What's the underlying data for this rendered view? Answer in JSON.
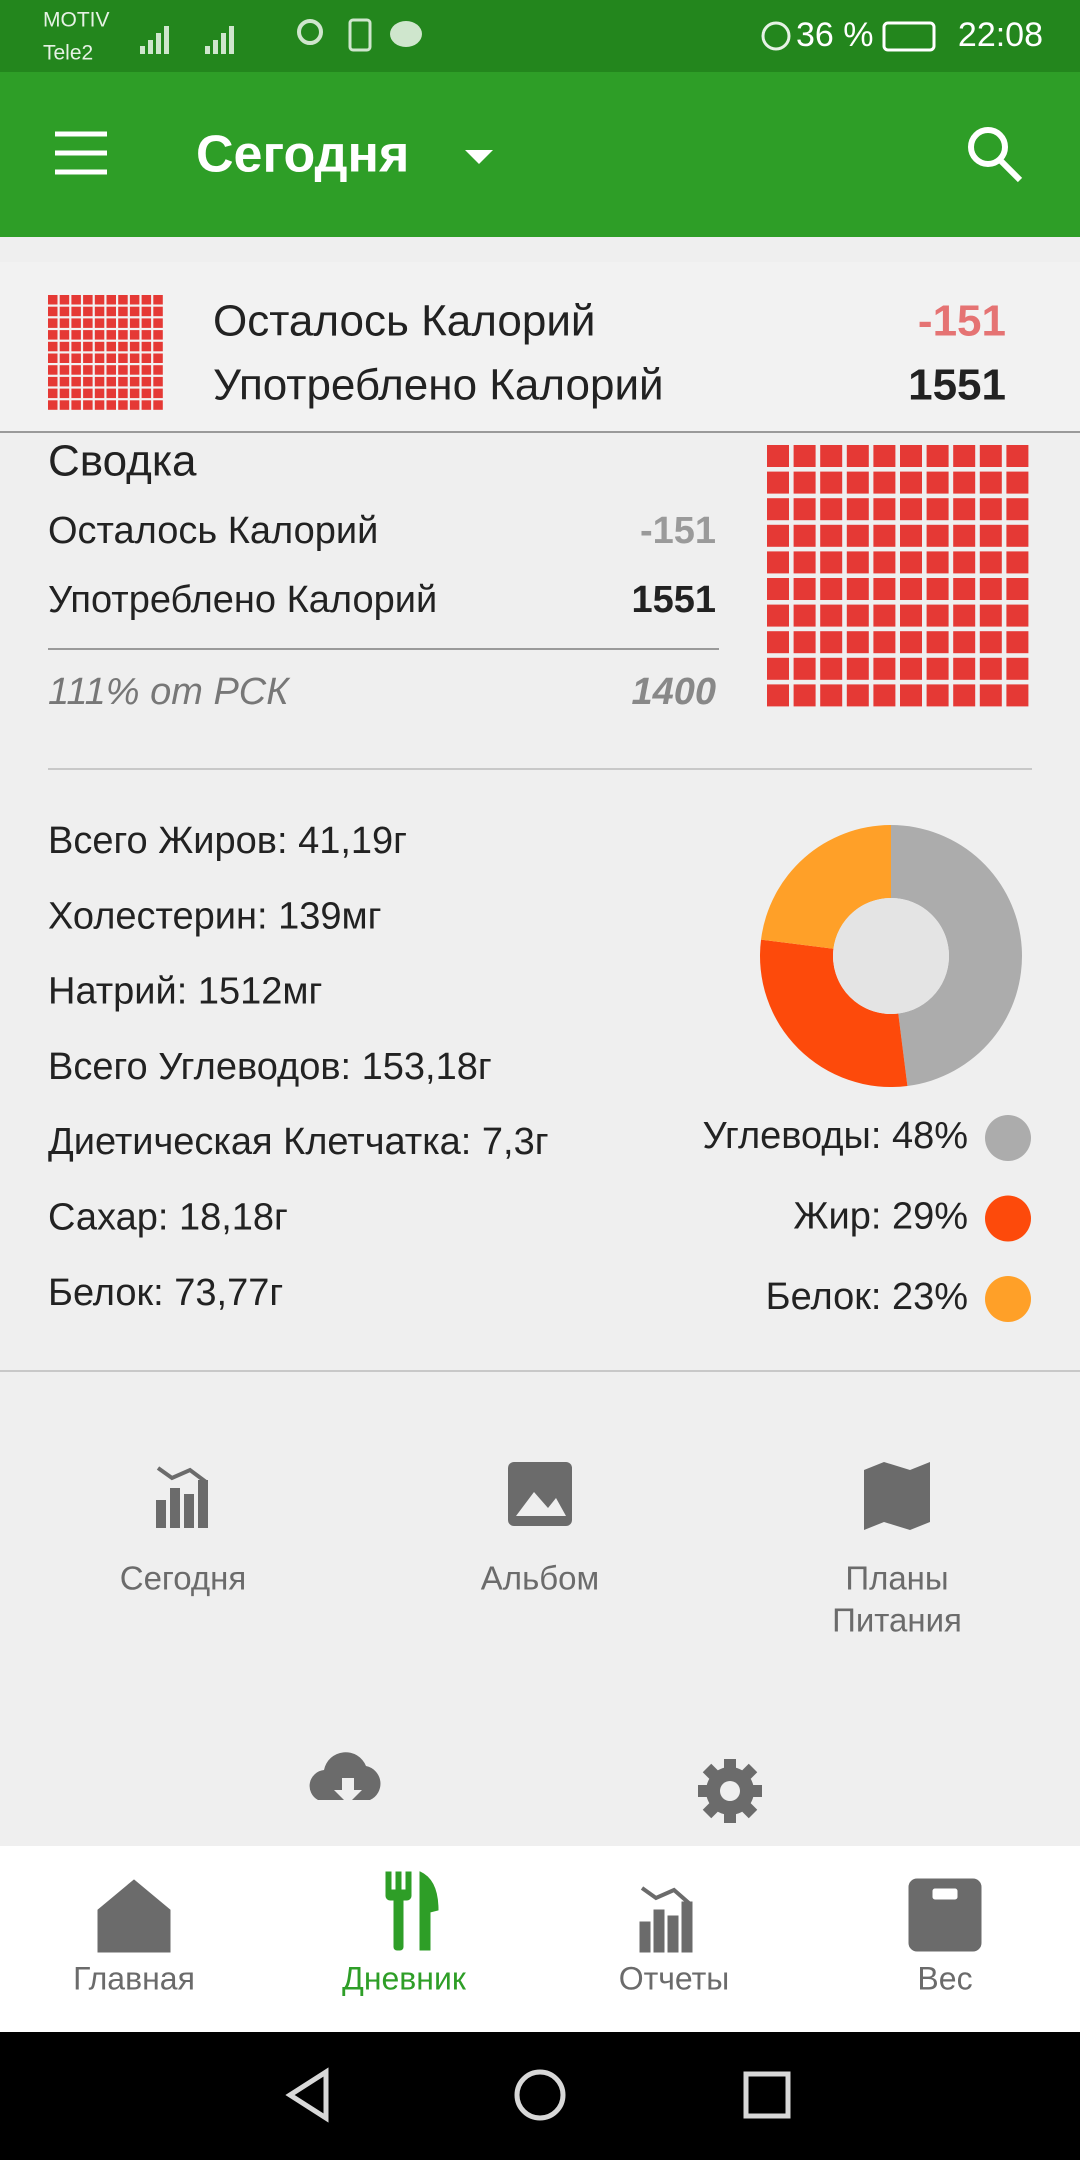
{
  "status_bar": {
    "carrier_1": "MOTIV",
    "carrier_2": "Tele2",
    "battery": "36 %",
    "time": "22:08"
  },
  "app_bar": {
    "title": "Сегодня"
  },
  "calorie_header": {
    "rows": [
      {
        "label": "Осталось Калорий",
        "value": -151
      },
      {
        "label": "Употреблено Калорий",
        "value": 1551
      }
    ]
  },
  "summary": {
    "title": "Сводка",
    "rows": [
      {
        "label": "Осталось Калорий",
        "value": -151
      },
      {
        "label": "Употреблено Калорий",
        "value": 1551
      }
    ],
    "percent_label": "111% от РСК",
    "goal": 1400
  },
  "nutrients": [
    "Всего Жиров: 41,19г",
    "Холестерин: 139мг",
    "Натрий: 1512мг",
    "Всего Углеводов: 153,18г",
    "Диетическая Клетчатка: 7,3г",
    "Сахар: 18,18г",
    "Белок: 73,77г"
  ],
  "macro_chart": {
    "type": "pie",
    "values": [
      48,
      29,
      23
    ],
    "value_labels": [
      "Углеводы: 48%",
      "Жир: 29%",
      "Белок: 23%"
    ],
    "colors": [
      "#acacac",
      "#fd4a0b",
      "#ffa028"
    ]
  },
  "shortcuts": [
    [
      "Сегодня"
    ],
    [
      "Альбом"
    ],
    [
      "Планы",
      "Питания"
    ]
  ],
  "bottom_nav": {
    "items": [
      "Главная",
      "Дневник",
      "Отчеты",
      "Вес"
    ],
    "active": 1
  }
}
